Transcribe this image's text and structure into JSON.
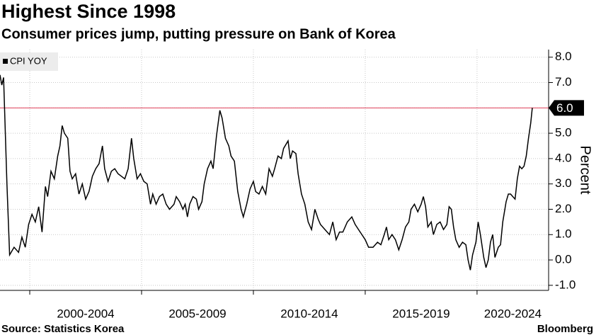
{
  "chart_data": {
    "type": "line",
    "title": "Highest Since 1998",
    "subtitle": "Consumer prices jump, putting pressure on Bank of Korea",
    "y_label": "Percent",
    "source": "Source: Statistics Korea",
    "brand": "Bloomberg",
    "xlim": [
      1998.67,
      2023.2
    ],
    "xticks": [
      {
        "value": 2000,
        "label": "2000-2004"
      },
      {
        "value": 2005,
        "label": "2005-2009"
      },
      {
        "value": 2010,
        "label": "2010-2014"
      },
      {
        "value": 2015,
        "label": "2015-2019"
      },
      {
        "value": 2020,
        "label": "2020-2024"
      }
    ],
    "ylim": [
      -1.2,
      8.3
    ],
    "yticks": [
      {
        "value": 8,
        "label": "8.0"
      },
      {
        "value": 7,
        "label": "7.0"
      },
      {
        "value": 6,
        "label": "6.0"
      },
      {
        "value": 5,
        "label": "5.0"
      },
      {
        "value": 4,
        "label": "4.0"
      },
      {
        "value": 3,
        "label": "3.0"
      },
      {
        "value": 2,
        "label": "2.0"
      },
      {
        "value": 1,
        "label": "1.0"
      },
      {
        "value": 0,
        "label": "0.0"
      },
      {
        "value": -1,
        "label": "-1.0"
      }
    ],
    "grid": true,
    "legend": "top-left",
    "reference_line": {
      "value": 6,
      "label": "6.0",
      "color": "#e0405a"
    },
    "x": [
      1998.67,
      1998.75,
      1998.83,
      1998.98,
      1999.1,
      1999.3,
      1999.5,
      1999.65,
      1999.8,
      1999.95,
      2000.1,
      2000.25,
      2000.4,
      2000.55,
      2000.7,
      2000.8,
      2000.95,
      2001.1,
      2001.25,
      2001.35,
      2001.45,
      2001.55,
      2001.7,
      2001.8,
      2001.9,
      2002.05,
      2002.2,
      2002.35,
      2002.5,
      2002.65,
      2002.8,
      2002.95,
      2003.1,
      2003.25,
      2003.35,
      2003.5,
      2003.65,
      2003.8,
      2003.95,
      2004.1,
      2004.25,
      2004.4,
      2004.55,
      2004.65,
      2004.8,
      2004.95,
      2005.1,
      2005.25,
      2005.4,
      2005.5,
      2005.65,
      2005.8,
      2005.95,
      2006.1,
      2006.25,
      2006.45,
      2006.55,
      2006.7,
      2006.85,
      2006.95,
      2007.05,
      2007.15,
      2007.3,
      2007.45,
      2007.55,
      2007.7,
      2007.8,
      2007.95,
      2008.1,
      2008.2,
      2008.35,
      2008.5,
      2008.6,
      2008.75,
      2008.9,
      2009.0,
      2009.15,
      2009.3,
      2009.45,
      2009.55,
      2009.7,
      2009.85,
      2010.0,
      2010.1,
      2010.25,
      2010.4,
      2010.55,
      2010.7,
      2010.85,
      2010.95,
      2011.1,
      2011.25,
      2011.35,
      2011.55,
      2011.65,
      2011.75,
      2011.9,
      2012.0,
      2012.15,
      2012.3,
      2012.45,
      2012.6,
      2012.75,
      2012.9,
      2013.0,
      2013.2,
      2013.4,
      2013.55,
      2013.7,
      2013.85,
      2014.0,
      2014.2,
      2014.4,
      2014.55,
      2014.7,
      2014.85,
      2015.0,
      2015.15,
      2015.35,
      2015.55,
      2015.7,
      2015.85,
      2015.95,
      2016.05,
      2016.2,
      2016.35,
      2016.5,
      2016.65,
      2016.8,
      2016.95,
      2017.05,
      2017.2,
      2017.35,
      2017.5,
      2017.6,
      2017.7,
      2017.8,
      2017.95,
      2018.05,
      2018.2,
      2018.35,
      2018.5,
      2018.65,
      2018.75,
      2018.85,
      2018.95,
      2019.05,
      2019.2,
      2019.35,
      2019.5,
      2019.6,
      2019.7,
      2019.8,
      2019.95,
      2020.05,
      2020.15,
      2020.3,
      2020.4,
      2020.5,
      2020.6,
      2020.7,
      2020.8,
      2020.95,
      2021.05,
      2021.15,
      2021.3,
      2021.4,
      2021.5,
      2021.6,
      2021.7,
      2021.8,
      2021.9,
      2022.0,
      2022.1,
      2022.2,
      2022.3,
      2022.4,
      2022.47
    ],
    "series": [
      {
        "name": "CPI YOY",
        "color": "#000000",
        "values": [
          7.3,
          6.9,
          7.2,
          3.0,
          0.2,
          0.5,
          0.3,
          0.9,
          0.5,
          1.4,
          1.8,
          1.5,
          2.1,
          1.1,
          2.9,
          2.5,
          3.5,
          3.2,
          4.1,
          4.5,
          5.3,
          5.0,
          4.8,
          3.5,
          3.2,
          3.4,
          2.6,
          3.0,
          2.4,
          2.7,
          3.3,
          3.6,
          3.8,
          4.5,
          3.6,
          3.1,
          3.5,
          3.6,
          3.4,
          3.3,
          3.2,
          3.6,
          4.8,
          4.0,
          3.2,
          3.4,
          3.1,
          3.0,
          2.2,
          2.6,
          2.2,
          2.5,
          2.6,
          2.2,
          2.0,
          2.2,
          2.5,
          2.3,
          2.0,
          2.2,
          1.7,
          2.2,
          2.5,
          2.4,
          2.0,
          2.3,
          3.0,
          3.6,
          3.9,
          3.6,
          4.9,
          5.9,
          5.6,
          4.8,
          4.5,
          4.1,
          3.9,
          2.7,
          2.0,
          1.7,
          2.2,
          2.8,
          3.1,
          2.7,
          2.6,
          2.9,
          2.6,
          3.6,
          3.3,
          3.6,
          4.1,
          4.0,
          4.4,
          4.7,
          4.0,
          4.3,
          4.2,
          3.4,
          2.6,
          2.2,
          1.5,
          1.2,
          2.0,
          1.6,
          1.4,
          1.2,
          1.0,
          1.5,
          0.8,
          1.1,
          1.1,
          1.5,
          1.7,
          1.4,
          1.2,
          1.0,
          0.8,
          0.5,
          0.5,
          0.7,
          0.6,
          1.0,
          1.3,
          0.8,
          1.0,
          0.8,
          0.4,
          0.8,
          1.3,
          1.5,
          2.0,
          2.2,
          1.9,
          2.2,
          2.5,
          2.1,
          1.3,
          1.5,
          1.0,
          1.4,
          1.5,
          1.2,
          1.4,
          2.1,
          2.0,
          1.3,
          0.8,
          0.5,
          0.7,
          0.6,
          0.0,
          -0.4,
          0.2,
          0.7,
          1.5,
          1.0,
          0.1,
          -0.3,
          0.0,
          0.7,
          1.0,
          0.1,
          0.5,
          0.6,
          1.5,
          2.3,
          2.6,
          2.6,
          2.5,
          2.4,
          3.2,
          3.7,
          3.6,
          3.7,
          4.1,
          4.8,
          5.4,
          6.0
        ]
      }
    ]
  }
}
